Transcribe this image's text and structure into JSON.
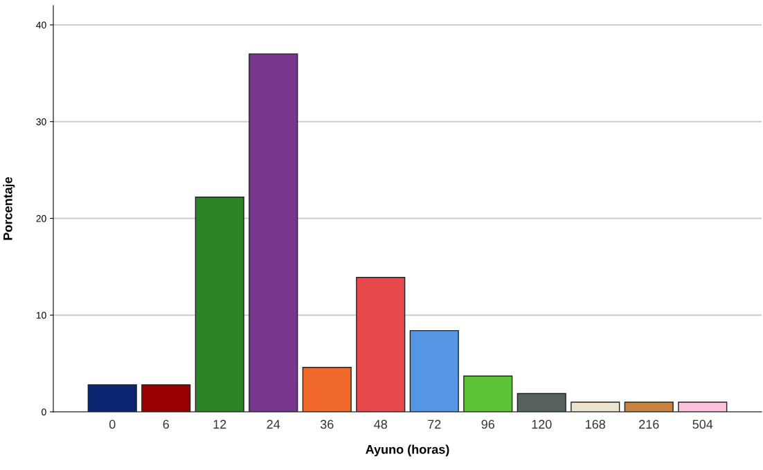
{
  "chart_data": {
    "type": "bar",
    "xlabel": "Ayuno (horas)",
    "ylabel": "Porcentaje",
    "categories": [
      "0",
      "6",
      "12",
      "24",
      "36",
      "48",
      "72",
      "96",
      "120",
      "168",
      "216",
      "504"
    ],
    "values": [
      2.8,
      2.8,
      22.2,
      37.0,
      4.6,
      13.9,
      8.4,
      3.7,
      1.9,
      1.0,
      1.0,
      1.0
    ],
    "colors": [
      "#0b2570",
      "#990000",
      "#2b8528",
      "#76378c",
      "#f0692a",
      "#e84a4c",
      "#5596e5",
      "#5cc236",
      "#59615c",
      "#ebe5cf",
      "#c88240",
      "#fdc1de"
    ],
    "ylim": [
      0,
      42
    ],
    "yticks": [
      0,
      10,
      20,
      30,
      40
    ],
    "grid": "y",
    "legend": false
  }
}
